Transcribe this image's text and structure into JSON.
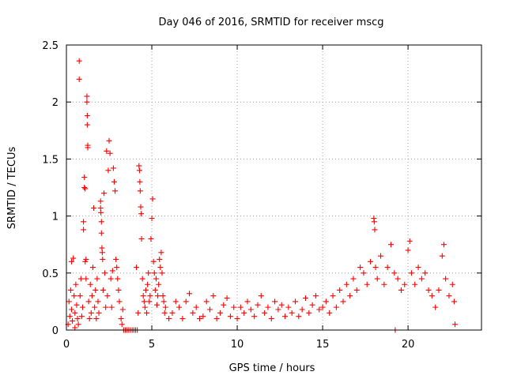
{
  "chart_data": {
    "type": "scatter",
    "title": "Day 046 of 2016, SRMTID for receiver mscg",
    "xlabel": "GPS time / hours",
    "ylabel": "SRMTID / TECUs",
    "xlim": [
      0,
      24.3
    ],
    "ylim": [
      0,
      2.5
    ],
    "xticks": [
      0,
      5,
      10,
      15,
      20
    ],
    "yticks": [
      0,
      0.5,
      1,
      1.5,
      2,
      2.5
    ],
    "grid": true,
    "marker": "+",
    "color": "#ff0000",
    "points": [
      [
        0.1,
        0.05
      ],
      [
        0.15,
        0.25
      ],
      [
        0.2,
        0.12
      ],
      [
        0.25,
        0.35
      ],
      [
        0.3,
        0.6
      ],
      [
        0.3,
        0.18
      ],
      [
        0.35,
        0.08
      ],
      [
        0.4,
        0.63
      ],
      [
        0.45,
        0.3
      ],
      [
        0.5,
        0.15
      ],
      [
        0.5,
        0.02
      ],
      [
        0.55,
        0.4
      ],
      [
        0.6,
        0.22
      ],
      [
        0.65,
        0.1
      ],
      [
        0.7,
        0.05
      ],
      [
        0.75,
        2.36
      ],
      [
        0.75,
        2.2
      ],
      [
        0.8,
        0.3
      ],
      [
        0.85,
        0.45
      ],
      [
        0.9,
        0.12
      ],
      [
        0.95,
        0.2
      ],
      [
        1.0,
        0.95
      ],
      [
        1.0,
        0.88
      ],
      [
        1.05,
        1.34
      ],
      [
        1.05,
        1.25
      ],
      [
        1.1,
        1.24
      ],
      [
        1.1,
        0.6
      ],
      [
        1.15,
        0.62
      ],
      [
        1.15,
        0.45
      ],
      [
        1.2,
        2.05
      ],
      [
        1.2,
        2.0
      ],
      [
        1.22,
        1.88
      ],
      [
        1.22,
        1.8
      ],
      [
        1.25,
        1.62
      ],
      [
        1.25,
        1.6
      ],
      [
        1.3,
        0.25
      ],
      [
        1.35,
        0.1
      ],
      [
        1.4,
        0.4
      ],
      [
        1.45,
        0.15
      ],
      [
        1.5,
        0.3
      ],
      [
        1.55,
        0.55
      ],
      [
        1.6,
        1.07
      ],
      [
        1.65,
        0.2
      ],
      [
        1.7,
        0.35
      ],
      [
        1.75,
        0.1
      ],
      [
        1.8,
        0.45
      ],
      [
        1.85,
        0.25
      ],
      [
        1.9,
        0.15
      ],
      [
        2.0,
        1.13
      ],
      [
        2.0,
        1.07
      ],
      [
        2.02,
        1.03
      ],
      [
        2.05,
        0.95
      ],
      [
        2.05,
        0.85
      ],
      [
        2.08,
        0.72
      ],
      [
        2.1,
        0.68
      ],
      [
        2.12,
        0.62
      ],
      [
        2.15,
        0.35
      ],
      [
        2.2,
        1.2
      ],
      [
        2.25,
        0.5
      ],
      [
        2.3,
        0.2
      ],
      [
        2.35,
        1.57
      ],
      [
        2.4,
        0.3
      ],
      [
        2.45,
        1.4
      ],
      [
        2.5,
        1.66
      ],
      [
        2.55,
        1.55
      ],
      [
        2.6,
        0.45
      ],
      [
        2.65,
        0.2
      ],
      [
        2.7,
        0.52
      ],
      [
        2.75,
        1.42
      ],
      [
        2.8,
        1.3
      ],
      [
        2.85,
        1.22
      ],
      [
        2.9,
        0.62
      ],
      [
        2.95,
        0.55
      ],
      [
        3.0,
        0.45
      ],
      [
        3.05,
        0.35
      ],
      [
        3.1,
        0.25
      ],
      [
        3.2,
        0.1
      ],
      [
        3.25,
        0.05
      ],
      [
        3.3,
        0.18
      ],
      [
        3.35,
        0.0
      ],
      [
        3.45,
        0.0
      ],
      [
        3.55,
        0.0
      ],
      [
        3.65,
        0.0
      ],
      [
        3.75,
        0.0
      ],
      [
        3.85,
        0.0
      ],
      [
        3.95,
        0.0
      ],
      [
        4.05,
        0.0
      ],
      [
        4.15,
        0.0
      ],
      [
        4.1,
        0.55
      ],
      [
        4.2,
        0.15
      ],
      [
        4.25,
        1.44
      ],
      [
        4.28,
        1.4
      ],
      [
        4.3,
        1.3
      ],
      [
        4.32,
        1.22
      ],
      [
        4.35,
        1.08
      ],
      [
        4.38,
        1.02
      ],
      [
        4.4,
        0.8
      ],
      [
        4.45,
        0.45
      ],
      [
        4.5,
        0.3
      ],
      [
        4.55,
        0.25
      ],
      [
        4.6,
        0.2
      ],
      [
        4.65,
        0.35
      ],
      [
        4.7,
        0.15
      ],
      [
        4.75,
        0.4
      ],
      [
        4.8,
        0.5
      ],
      [
        4.85,
        0.25
      ],
      [
        4.9,
        0.3
      ],
      [
        4.95,
        0.8
      ],
      [
        5.0,
        0.98
      ],
      [
        5.05,
        1.15
      ],
      [
        5.1,
        0.6
      ],
      [
        5.15,
        0.5
      ],
      [
        5.2,
        0.35
      ],
      [
        5.25,
        0.45
      ],
      [
        5.3,
        0.22
      ],
      [
        5.35,
        0.3
      ],
      [
        5.4,
        0.4
      ],
      [
        5.45,
        0.62
      ],
      [
        5.5,
        0.55
      ],
      [
        5.55,
        0.68
      ],
      [
        5.6,
        0.5
      ],
      [
        5.65,
        0.3
      ],
      [
        5.7,
        0.25
      ],
      [
        5.75,
        0.15
      ],
      [
        5.8,
        0.2
      ],
      [
        6.0,
        0.1
      ],
      [
        6.2,
        0.15
      ],
      [
        6.4,
        0.25
      ],
      [
        6.6,
        0.2
      ],
      [
        6.8,
        0.1
      ],
      [
        7.0,
        0.25
      ],
      [
        7.2,
        0.32
      ],
      [
        7.4,
        0.15
      ],
      [
        7.6,
        0.2
      ],
      [
        7.8,
        0.1
      ],
      [
        8.0,
        0.12
      ],
      [
        8.2,
        0.25
      ],
      [
        8.4,
        0.18
      ],
      [
        8.6,
        0.3
      ],
      [
        8.8,
        0.1
      ],
      [
        9.0,
        0.15
      ],
      [
        9.2,
        0.22
      ],
      [
        9.4,
        0.28
      ],
      [
        9.6,
        0.12
      ],
      [
        9.8,
        0.2
      ],
      [
        10.0,
        0.1
      ],
      [
        10.2,
        0.2
      ],
      [
        10.4,
        0.15
      ],
      [
        10.6,
        0.25
      ],
      [
        10.8,
        0.18
      ],
      [
        11.0,
        0.12
      ],
      [
        11.2,
        0.22
      ],
      [
        11.4,
        0.3
      ],
      [
        11.6,
        0.15
      ],
      [
        11.8,
        0.2
      ],
      [
        12.0,
        0.1
      ],
      [
        12.2,
        0.25
      ],
      [
        12.4,
        0.18
      ],
      [
        12.6,
        0.22
      ],
      [
        12.8,
        0.12
      ],
      [
        13.0,
        0.2
      ],
      [
        13.2,
        0.15
      ],
      [
        13.4,
        0.25
      ],
      [
        13.6,
        0.12
      ],
      [
        13.8,
        0.18
      ],
      [
        14.0,
        0.28
      ],
      [
        14.2,
        0.15
      ],
      [
        14.4,
        0.22
      ],
      [
        14.6,
        0.3
      ],
      [
        14.8,
        0.18
      ],
      [
        15.0,
        0.2
      ],
      [
        15.2,
        0.25
      ],
      [
        15.4,
        0.15
      ],
      [
        15.6,
        0.3
      ],
      [
        15.8,
        0.2
      ],
      [
        16.0,
        0.35
      ],
      [
        16.2,
        0.25
      ],
      [
        16.4,
        0.4
      ],
      [
        16.6,
        0.3
      ],
      [
        16.8,
        0.45
      ],
      [
        17.0,
        0.35
      ],
      [
        17.2,
        0.55
      ],
      [
        17.4,
        0.5
      ],
      [
        17.6,
        0.4
      ],
      [
        17.8,
        0.6
      ],
      [
        18.0,
        0.98
      ],
      [
        18.02,
        0.95
      ],
      [
        18.05,
        0.88
      ],
      [
        18.1,
        0.55
      ],
      [
        18.2,
        0.45
      ],
      [
        18.4,
        0.65
      ],
      [
        18.6,
        0.4
      ],
      [
        18.8,
        0.55
      ],
      [
        19.0,
        0.75
      ],
      [
        19.2,
        0.5
      ],
      [
        19.25,
        0.0
      ],
      [
        19.4,
        0.45
      ],
      [
        19.6,
        0.35
      ],
      [
        19.8,
        0.4
      ],
      [
        20.0,
        0.7
      ],
      [
        20.1,
        0.78
      ],
      [
        20.2,
        0.5
      ],
      [
        20.4,
        0.4
      ],
      [
        20.6,
        0.55
      ],
      [
        20.8,
        0.45
      ],
      [
        21.0,
        0.5
      ],
      [
        21.2,
        0.35
      ],
      [
        21.4,
        0.3
      ],
      [
        21.6,
        0.2
      ],
      [
        21.8,
        0.35
      ],
      [
        22.0,
        0.65
      ],
      [
        22.1,
        0.75
      ],
      [
        22.2,
        0.45
      ],
      [
        22.4,
        0.3
      ],
      [
        22.6,
        0.4
      ],
      [
        22.7,
        0.25
      ],
      [
        22.75,
        0.05
      ]
    ]
  }
}
